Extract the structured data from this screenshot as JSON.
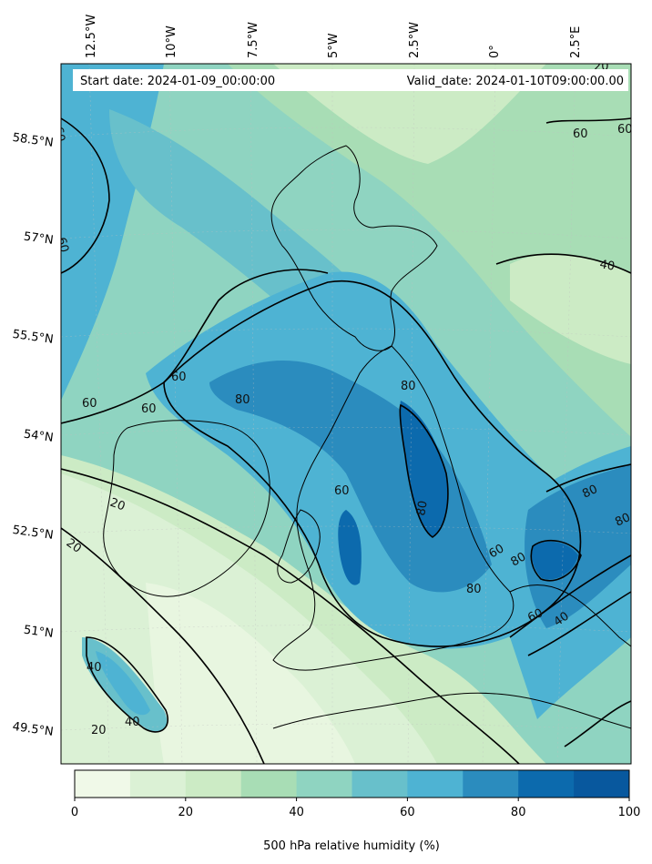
{
  "map": {
    "start_date": "Start date: 2024-01-09_00:00:00",
    "valid_date": "Valid_date: 2024-01-10T09:00:00.00",
    "lon_labels": [
      "12.5°W",
      "10°W",
      "7.5°W",
      "5°W",
      "2.5°W",
      "0°",
      "2.5°E"
    ],
    "lat_labels": [
      "58.5°N",
      "57°N",
      "55.5°N",
      "54°N",
      "52.5°N",
      "51°N",
      "49.5°N"
    ],
    "contour_labels": [
      "20",
      "20",
      "20",
      "20",
      "40",
      "40",
      "40",
      "40",
      "60",
      "60",
      "60",
      "60",
      "60",
      "60",
      "60",
      "60",
      "60",
      "60",
      "80",
      "80",
      "80",
      "80",
      "80",
      "80",
      "80"
    ]
  },
  "colorbar": {
    "label": "500 hPa relative humidity (%)",
    "ticks": [
      "0",
      "20",
      "40",
      "60",
      "80",
      "100"
    ],
    "colors": [
      "#f0f9e8",
      "#dbf1d5",
      "#ccebc5",
      "#a8ddb5",
      "#8fd4c1",
      "#68c0cb",
      "#4eb3d3",
      "#2b8cbe",
      "#0c6aad",
      "#08589e"
    ]
  }
}
